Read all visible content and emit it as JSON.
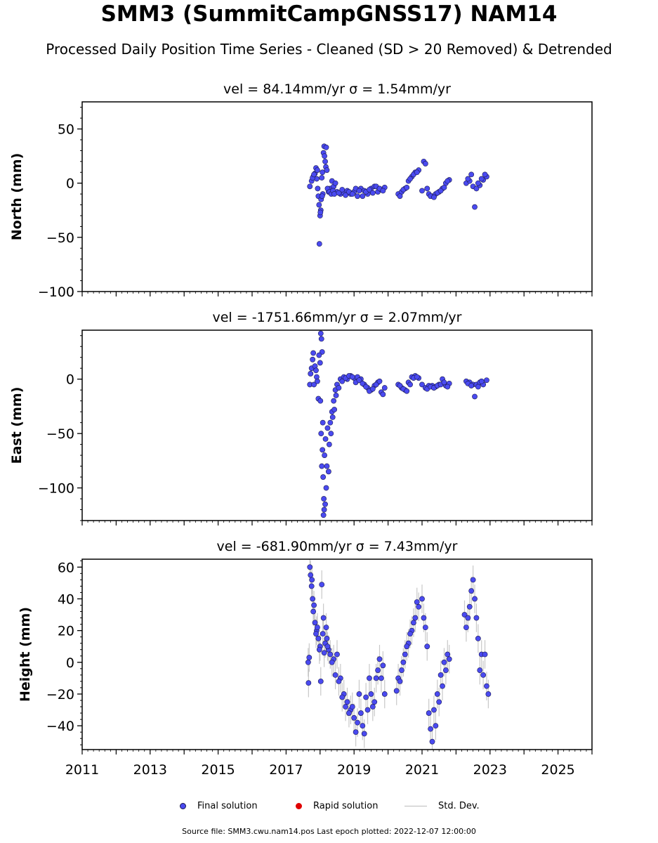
{
  "title": "SMM3 (SummitCampGNSS17) NAM14",
  "subtitle": "Processed Daily Position Time Series - Cleaned (SD > 20 Removed) & Detrended",
  "legend": {
    "final": "Final solution",
    "rapid": "Rapid solution",
    "std": "Std. Dev."
  },
  "source": "Source file: SMM3.cwu.nam14.pos  Last epoch plotted: 2022-12-07 12:00:00",
  "colors": {
    "final": "#4a4af0",
    "final_edge": "#1a1a50",
    "rapid": "#e00000",
    "std": "#bbbbbb"
  },
  "chart_data": [
    {
      "type": "scatter",
      "title": "vel = 84.14mm/yr   σ = 1.54mm/yr",
      "ylabel": "North (mm)",
      "xlim": [
        2011,
        2026
      ],
      "ylim": [
        -100,
        75
      ],
      "yticks": [
        -100,
        -50,
        0,
        50
      ],
      "ytick_labels": [
        "−100",
        "−50",
        "0",
        "50"
      ],
      "xticks": [
        2011,
        2013,
        2015,
        2017,
        2019,
        2021,
        2023,
        2025
      ],
      "show_xtick_labels": false,
      "series": [
        {
          "name": "Final solution",
          "x": [
            2017.7,
            2017.75,
            2017.8,
            2017.85,
            2017.88,
            2017.9,
            2017.93,
            2017.95,
            2017.97,
            2018.0,
            2018.02,
            2018.05,
            2018.07,
            2018.1,
            2018.12,
            2018.15,
            2018.17,
            2018.2,
            2018.25,
            2018.3,
            2018.35,
            2018.4,
            2018.45,
            2018.5,
            2018.6,
            2018.7,
            2018.8,
            2018.9,
            2019.0,
            2019.1,
            2019.2,
            2019.3,
            2019.4,
            2019.5,
            2019.6,
            2019.7,
            2019.8,
            2019.9,
            2020.3,
            2020.4,
            2020.5,
            2020.6,
            2020.7,
            2020.8,
            2020.9,
            2021.0,
            2021.05,
            2021.1,
            2021.2,
            2021.3,
            2021.4,
            2021.5,
            2021.6,
            2021.7,
            2021.8,
            2022.3,
            2022.4,
            2022.45,
            2022.5,
            2022.55,
            2022.6,
            2022.7,
            2022.8,
            2022.9,
            2017.78,
            2017.82,
            2017.92,
            2018.03,
            2018.08,
            2018.13,
            2018.18,
            2017.98,
            2018.01,
            2018.06,
            2018.22,
            2018.28,
            2018.33,
            2018.38,
            2018.42,
            2018.55,
            2018.65,
            2018.75,
            2018.85,
            2018.95,
            2019.05,
            2019.15,
            2019.25,
            2019.35,
            2019.45,
            2019.55,
            2019.65,
            2019.75,
            2019.85,
            2020.35,
            2020.45,
            2020.55,
            2020.65,
            2020.75,
            2020.85,
            2021.15,
            2021.25,
            2021.35,
            2021.45,
            2021.55,
            2021.65,
            2021.75,
            2022.35,
            2022.65,
            2022.75,
            2022.85
          ],
          "y": [
            -3,
            2,
            6,
            9,
            14,
            4,
            -5,
            -12,
            -20,
            -30,
            -25,
            5,
            10,
            28,
            34,
            20,
            15,
            12,
            -8,
            -5,
            2,
            -3,
            0,
            -8,
            -10,
            -9,
            -7,
            -10,
            -8,
            -12,
            -5,
            -7,
            -10,
            -5,
            -3,
            -8,
            -6,
            -4,
            -10,
            -8,
            -5,
            2,
            6,
            10,
            12,
            -7,
            20,
            18,
            -10,
            -12,
            -10,
            -8,
            -5,
            0,
            3,
            0,
            2,
            8,
            -3,
            -22,
            -5,
            -2,
            3,
            6,
            5,
            8,
            12,
            -15,
            -10,
            25,
            33,
            -56,
            -27,
            -12,
            -5,
            -8,
            -10,
            -7,
            -10,
            -9,
            -6,
            -11,
            -8,
            -10,
            -5,
            -7,
            -12,
            -8,
            -6,
            -9,
            -3,
            -5,
            -7,
            -12,
            -6,
            -4,
            4,
            8,
            10,
            -5,
            -12,
            -13,
            -9,
            -7,
            -4,
            2,
            4,
            0,
            4,
            8
          ]
        }
      ]
    },
    {
      "type": "scatter",
      "title": "vel = -1751.66mm/yr   σ = 2.07mm/yr",
      "ylabel": "East (mm)",
      "xlim": [
        2011,
        2026
      ],
      "ylim": [
        -130,
        45
      ],
      "yticks": [
        -100,
        -50,
        0
      ],
      "ytick_labels": [
        "−100",
        "−50",
        "0"
      ],
      "xticks": [
        2011,
        2013,
        2015,
        2017,
        2019,
        2021,
        2023,
        2025
      ],
      "show_xtick_labels": false,
      "series": [
        {
          "name": "Final solution",
          "x": [
            2017.7,
            2017.75,
            2017.8,
            2017.85,
            2017.9,
            2017.95,
            2018.0,
            2018.02,
            2018.04,
            2018.06,
            2018.08,
            2018.1,
            2018.12,
            2018.15,
            2018.18,
            2018.2,
            2018.25,
            2018.3,
            2018.35,
            2018.4,
            2018.45,
            2018.5,
            2018.6,
            2018.7,
            2018.8,
            2018.9,
            2019.0,
            2019.1,
            2019.2,
            2019.3,
            2019.4,
            2019.5,
            2019.6,
            2019.7,
            2019.8,
            2019.9,
            2020.3,
            2020.4,
            2020.5,
            2020.6,
            2020.7,
            2020.8,
            2020.9,
            2021.0,
            2021.1,
            2021.2,
            2021.3,
            2021.4,
            2021.5,
            2021.6,
            2021.7,
            2021.8,
            2022.3,
            2022.4,
            2022.5,
            2022.55,
            2022.6,
            2022.7,
            2022.8,
            2022.9,
            2017.72,
            2017.78,
            2017.82,
            2017.88,
            2017.92,
            2017.97,
            2018.01,
            2018.03,
            2018.05,
            2018.07,
            2018.09,
            2018.11,
            2018.13,
            2018.16,
            2018.22,
            2018.27,
            2018.32,
            2018.37,
            2018.42,
            2018.47,
            2018.55,
            2018.65,
            2018.75,
            2018.85,
            2018.95,
            2019.05,
            2019.15,
            2019.25,
            2019.35,
            2019.45,
            2019.55,
            2019.65,
            2019.75,
            2019.85,
            2020.35,
            2020.45,
            2020.55,
            2020.65,
            2020.75,
            2020.85,
            2021.15,
            2021.25,
            2021.35,
            2021.45,
            2021.55,
            2021.65,
            2021.75,
            2022.35,
            2022.45,
            2022.65,
            2022.75
          ],
          "y": [
            -5,
            10,
            24,
            12,
            2,
            -18,
            15,
            42,
            37,
            25,
            -40,
            -125,
            -120,
            -115,
            -100,
            -80,
            -85,
            -40,
            -30,
            -20,
            -10,
            -5,
            0,
            2,
            0,
            3,
            1,
            2,
            0,
            -5,
            -8,
            -10,
            -6,
            -3,
            -12,
            -8,
            -5,
            -8,
            -10,
            -3,
            2,
            3,
            1,
            -5,
            -8,
            -6,
            -6,
            -7,
            -5,
            0,
            -6,
            -4,
            -2,
            -3,
            -5,
            -16,
            -5,
            -3,
            -5,
            -1,
            5,
            18,
            -5,
            8,
            -2,
            22,
            -20,
            -50,
            -80,
            -65,
            -90,
            -110,
            -70,
            -55,
            -45,
            -60,
            -50,
            -35,
            -28,
            -15,
            -8,
            -2,
            1,
            3,
            2,
            -3,
            -1,
            -4,
            -7,
            -11,
            -9,
            -5,
            -2,
            -14,
            -6,
            -9,
            -11,
            -5,
            1,
            2,
            -9,
            -7,
            -8,
            -6,
            -5,
            -3,
            -7,
            -4,
            -6,
            -7,
            -2
          ]
        }
      ]
    },
    {
      "type": "scatter",
      "title": "vel = -681.90mm/yr   σ = 7.43mm/yr",
      "ylabel": "Height (mm)",
      "xlim": [
        2011,
        2026
      ],
      "ylim": [
        -55,
        65
      ],
      "yticks": [
        -40,
        -20,
        0,
        20,
        40,
        60
      ],
      "ytick_labels": [
        "−40",
        "−20",
        "0",
        "20",
        "40",
        "60"
      ],
      "xticks": [
        2011,
        2013,
        2015,
        2017,
        2019,
        2021,
        2023,
        2025
      ],
      "xtick_labels": [
        "2011",
        "2013",
        "2015",
        "2017",
        "2019",
        "2021",
        "2023",
        "2025"
      ],
      "show_xtick_labels": true,
      "series": [
        {
          "name": "Final solution",
          "x": [
            2017.65,
            2017.66,
            2017.68,
            2017.7,
            2017.72,
            2017.75,
            2017.78,
            2017.8,
            2017.85,
            2017.9,
            2017.95,
            2018.0,
            2018.05,
            2018.1,
            2018.15,
            2018.2,
            2018.25,
            2018.3,
            2018.4,
            2018.5,
            2018.6,
            2018.7,
            2018.8,
            2018.9,
            2019.0,
            2019.05,
            2019.1,
            2019.15,
            2019.2,
            2019.3,
            2019.4,
            2019.5,
            2019.6,
            2019.65,
            2019.7,
            2019.75,
            2019.8,
            2019.9,
            2020.25,
            2020.3,
            2020.4,
            2020.5,
            2020.6,
            2020.7,
            2020.8,
            2020.9,
            2021.0,
            2021.05,
            2021.1,
            2021.15,
            2021.2,
            2021.3,
            2021.4,
            2021.5,
            2021.6,
            2021.7,
            2021.8,
            2022.25,
            2022.3,
            2022.35,
            2022.4,
            2022.45,
            2022.5,
            2022.55,
            2022.6,
            2022.65,
            2022.7,
            2022.75,
            2022.8,
            2022.85,
            2022.9,
            2022.95,
            2017.76,
            2017.82,
            2017.88,
            2017.92,
            2017.98,
            2018.02,
            2018.08,
            2018.12,
            2018.18,
            2018.22,
            2018.35,
            2018.45,
            2018.55,
            2018.65,
            2018.75,
            2018.85,
            2018.95,
            2019.25,
            2019.35,
            2019.45,
            2019.55,
            2019.85,
            2020.35,
            2020.45,
            2020.55,
            2020.65,
            2020.75,
            2020.85,
            2021.25,
            2021.35,
            2021.45,
            2021.55,
            2021.65,
            2021.75
          ],
          "y": [
            0,
            -13,
            3,
            60,
            55,
            48,
            40,
            32,
            25,
            20,
            15,
            10,
            49,
            28,
            12,
            15,
            8,
            5,
            2,
            5,
            -10,
            -20,
            -25,
            -30,
            -35,
            -44,
            -38,
            -20,
            -32,
            -45,
            -30,
            -20,
            -25,
            -10,
            -5,
            2,
            -10,
            -20,
            -18,
            -10,
            -5,
            5,
            12,
            20,
            28,
            35,
            40,
            28,
            22,
            10,
            -32,
            -50,
            -40,
            -25,
            -15,
            -5,
            2,
            30,
            22,
            28,
            35,
            45,
            52,
            40,
            28,
            15,
            -5,
            5,
            -8,
            5,
            -15,
            -20,
            52,
            36,
            18,
            22,
            8,
            -12,
            18,
            6,
            22,
            10,
            0,
            -8,
            -12,
            -22,
            -28,
            -32,
            -28,
            -40,
            -22,
            -10,
            -28,
            -2,
            -12,
            0,
            10,
            18,
            25,
            38,
            -42,
            -30,
            -20,
            -8,
            0,
            5
          ]
        }
      ]
    }
  ]
}
